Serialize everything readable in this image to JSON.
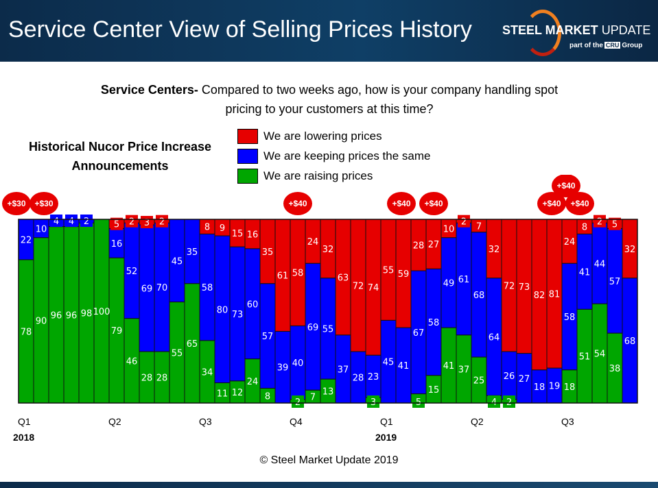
{
  "header": {
    "title": "Service Center View of Selling Prices History",
    "logo_text_bold": "STEEL MARKET",
    "logo_text": "UPDATE",
    "logo_sub_pre": "part of the",
    "logo_cru": "CRU",
    "logo_sub_post": "Group"
  },
  "question": {
    "bold": "Service Centers-",
    "text": " Compared to two weeks ago, how is your company handling spot pricing to your customers at this time?"
  },
  "nucor_label": "Historical Nucor Price Increase Announcements",
  "copyright": "© Steel Market Update 2019",
  "chart_data": {
    "type": "bar",
    "stacked": true,
    "ylim": [
      0,
      100
    ],
    "series": [
      {
        "name": "We are lowering prices",
        "color": "#e60000",
        "values": [
          0,
          0,
          0,
          0,
          0,
          0,
          5,
          2,
          3,
          2,
          0,
          0,
          8,
          9,
          15,
          16,
          35,
          61,
          58,
          24,
          32,
          63,
          72,
          74,
          55,
          59,
          28,
          27,
          10,
          2,
          7,
          32,
          72,
          73,
          82,
          81,
          24,
          8,
          2,
          5,
          32
        ]
      },
      {
        "name": "We are keeping prices the same",
        "color": "#0000ff",
        "values": [
          22,
          10,
          4,
          4,
          2,
          0,
          16,
          52,
          69,
          70,
          45,
          35,
          58,
          80,
          73,
          60,
          57,
          39,
          40,
          69,
          55,
          37,
          28,
          23,
          45,
          41,
          67,
          58,
          49,
          61,
          68,
          64,
          26,
          27,
          18,
          19,
          58,
          41,
          44,
          57,
          68
        ]
      },
      {
        "name": "We are raising prices",
        "color": "#00a600",
        "values": [
          78,
          90,
          96,
          96,
          98,
          100,
          79,
          46,
          28,
          28,
          55,
          65,
          34,
          11,
          12,
          24,
          8,
          0,
          2,
          7,
          13,
          0,
          0,
          3,
          0,
          0,
          5,
          15,
          41,
          37,
          25,
          4,
          2,
          0,
          0,
          0,
          18,
          51,
          54,
          38,
          0
        ]
      }
    ],
    "quarter_ticks": [
      {
        "bar": 1,
        "label": "Q1",
        "year": "2018"
      },
      {
        "bar": 7,
        "label": "Q2"
      },
      {
        "bar": 13,
        "label": "Q3"
      },
      {
        "bar": 19,
        "label": "Q4"
      },
      {
        "bar": 25,
        "label": "Q1",
        "year": "2019"
      },
      {
        "bar": 31,
        "label": "Q2"
      },
      {
        "bar": 37,
        "label": "Q3"
      }
    ],
    "annotations": [
      {
        "bar": 1,
        "label": "+$30"
      },
      {
        "bar": 2,
        "label": "+$30"
      },
      {
        "bar": 19,
        "label": "+$40"
      },
      {
        "bar": 26,
        "label": "+$40"
      },
      {
        "bar": 28,
        "label": "+$40"
      },
      {
        "bar": 36,
        "label": "+$40"
      },
      {
        "bar": 37,
        "label": "+$40",
        "stacked_above": true
      },
      {
        "bar": 38,
        "label": "+$40"
      }
    ],
    "legend": "top-center"
  }
}
